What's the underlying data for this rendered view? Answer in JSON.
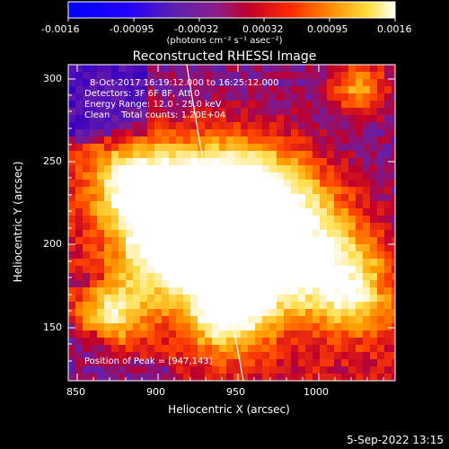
{
  "title": "Reconstructed RHESSI Image",
  "colorbar": {
    "tick_labels": [
      "-0.0016",
      "-0.00095",
      "-0.00032",
      "0.00032",
      "0.00095",
      "0.0016"
    ],
    "unit_label": "(photons cm⁻² s⁻¹ asec⁻²)"
  },
  "x_axis": {
    "label": "Heliocentric X (arcsec)",
    "tick_labels": [
      "850",
      "900",
      "950",
      "1000"
    ]
  },
  "y_axis": {
    "label": "Heliocentric Y (arcsec)",
    "tick_labels": [
      "150",
      "200",
      "250",
      "300"
    ]
  },
  "annotations": {
    "time_range": "8-Oct-2017 16:19:12.000 to 16:25:12.000",
    "detectors": "Detectors: 3F 6F 8F, Att 0",
    "energy": "Energy Range: 12.0 - 25.0 keV",
    "method": "Clean    Total counts: 1.20E+04",
    "peak": "Position of Peak = [947,143]"
  },
  "footer_date": "5-Sep-2022 13:15",
  "colors": {
    "background": "#000000",
    "text": "#ffffff",
    "colormap": [
      "#0000ff",
      "#3a00c0",
      "#6a1fa8",
      "#c0002a",
      "#ff4000",
      "#ff9a00",
      "#ffe050",
      "#ffffff"
    ]
  }
}
